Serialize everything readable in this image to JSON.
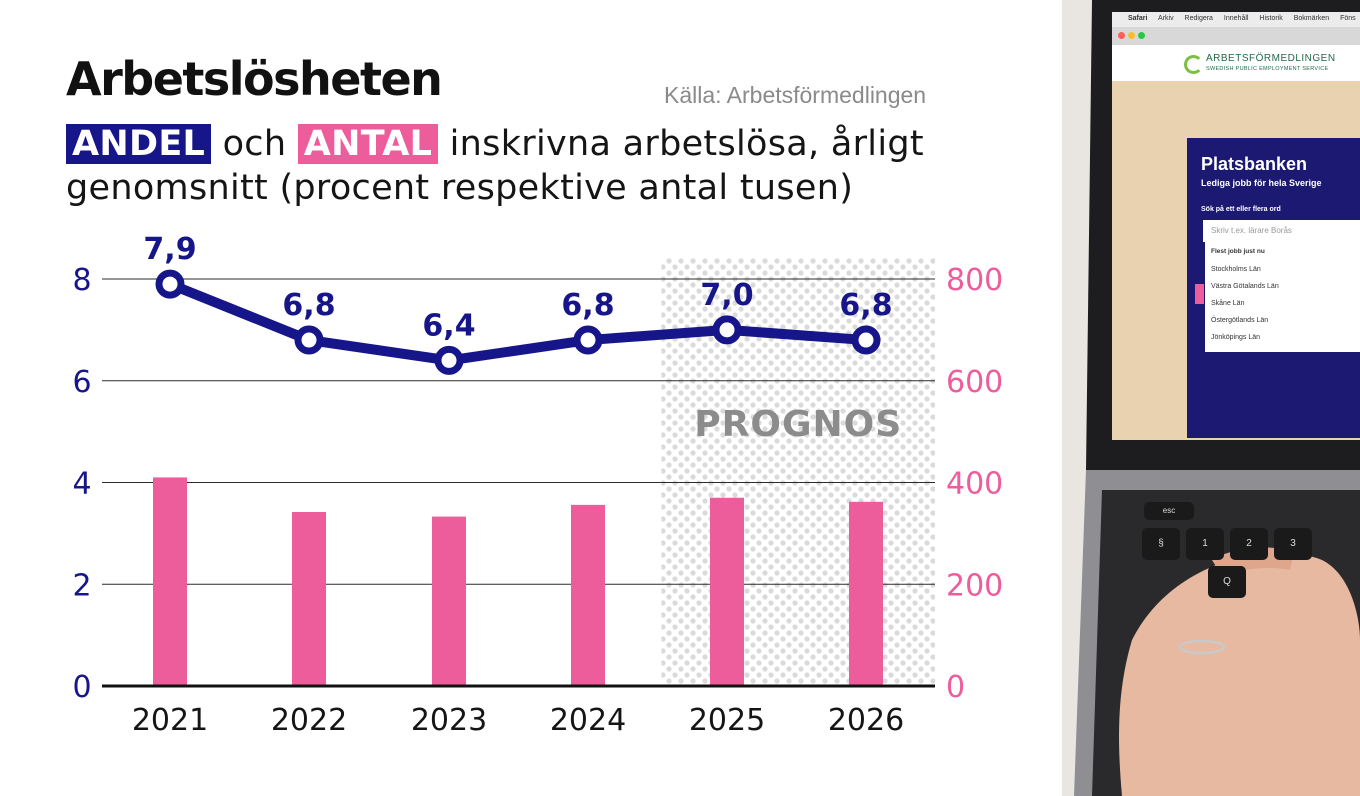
{
  "title": "Arbetslösheten",
  "source": "Källa: Arbetsförmedlingen",
  "subtitle": {
    "tag_andel": "ANDEL",
    "word_och": "och",
    "tag_antal": "ANTAL",
    "rest_line1": "inskrivna arbetslösa, årligt",
    "line2": "genomsnitt (procent respektive antal tusen)"
  },
  "colors": {
    "andel": "#16158a",
    "antal": "#ee5d9b",
    "prognos_label": "#8c8c8c"
  },
  "chart_data": {
    "type": "bar",
    "categories": [
      "2021",
      "2022",
      "2023",
      "2024",
      "2025",
      "2026"
    ],
    "series": [
      {
        "type": "line",
        "axis": "left",
        "values": [
          7.9,
          6.8,
          6.4,
          6.8,
          7.0,
          6.8
        ],
        "labels": [
          "7,9",
          "6,8",
          "6,4",
          "6,8",
          "7,0",
          "6,8"
        ]
      },
      {
        "type": "bar",
        "axis": "right",
        "values": [
          410,
          342,
          333,
          356,
          370,
          362
        ]
      }
    ],
    "yaxis_left": {
      "ticks": [
        "0",
        "2",
        "4",
        "6",
        "8"
      ],
      "values": [
        0,
        2,
        4,
        6,
        8
      ],
      "ylim": [
        0,
        8
      ]
    },
    "yaxis_right": {
      "ticks": [
        "0",
        "200",
        "400",
        "600",
        "800"
      ],
      "values": [
        0,
        200,
        400,
        600,
        800
      ],
      "ylim": [
        0,
        800
      ]
    },
    "forecast": {
      "label": "PROGNOS",
      "categories": [
        "2025",
        "2026"
      ]
    },
    "grid": true
  },
  "photo": {
    "menu": [
      "Safari",
      "Arkiv",
      "Redigera",
      "Innehåll",
      "Historik",
      "Bokmärken",
      "Föns"
    ],
    "site_name": "ARBETSFÖRMEDLINGEN",
    "site_sub": "SWEDISH PUBLIC EMPLOYMENT SERVICE",
    "panel_title": "Platsbanken",
    "panel_sub": "Lediga jobb för hela Sverige",
    "search_label": "Sök på ett eller flera ord",
    "search_placeholder": "Skriv t.ex. lärare Borås",
    "list_head": "Flest jobb just nu",
    "list_items": [
      "Stockholms Län",
      "Västra Götalands Län",
      "Skåne Län",
      "Östergötlands Län",
      "Jönköpings Län"
    ],
    "key_esc": "esc",
    "key_1": "1",
    "key_2": "2",
    "key_3": "3",
    "key_q": "Q",
    "key_section": "§"
  }
}
